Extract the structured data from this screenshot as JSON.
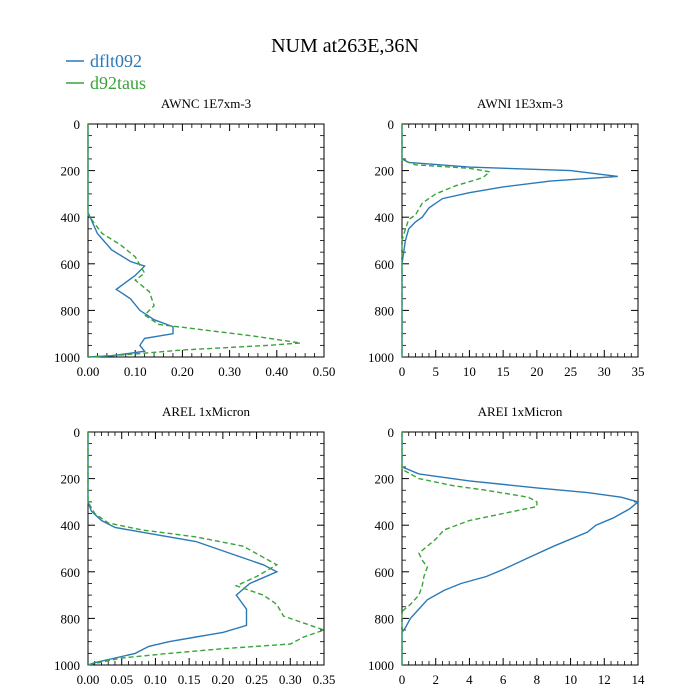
{
  "title": "NUM at263E,36N",
  "legend": [
    {
      "label": "dflt092",
      "color": "#2a7ab8",
      "dash": "solid"
    },
    {
      "label": "d92taus",
      "color": "#3aa33a",
      "dash": "dashed"
    }
  ],
  "chart_data": [
    {
      "type": "line",
      "title": "AWNC  1E7xm-3",
      "xlim": [
        0,
        0.5
      ],
      "ylim": [
        1000,
        0
      ],
      "x_ticks": [
        "0.00",
        "0.10",
        "0.20",
        "0.30",
        "0.40",
        "0.50"
      ],
      "x_tick_values": [
        0,
        0.1,
        0.2,
        0.3,
        0.4,
        0.5
      ],
      "y_ticks": [
        "0",
        "200",
        "400",
        "600",
        "800",
        "1000"
      ],
      "y_tick_values": [
        0,
        200,
        400,
        600,
        800,
        1000
      ],
      "series": [
        {
          "name": "dflt092",
          "points": [
            [
              0,
              0
            ],
            [
              0,
              380
            ],
            [
              0.02,
              470
            ],
            [
              0.05,
              540
            ],
            [
              0.09,
              590
            ],
            [
              0.12,
              610
            ],
            [
              0.1,
              650
            ],
            [
              0.06,
              710
            ],
            [
              0.09,
              750
            ],
            [
              0.11,
              800
            ],
            [
              0.14,
              840
            ],
            [
              0.18,
              870
            ],
            [
              0.18,
              900
            ],
            [
              0.12,
              920
            ],
            [
              0.11,
              950
            ],
            [
              0.12,
              975
            ],
            [
              0.05,
              995
            ],
            [
              0,
              1000
            ]
          ]
        },
        {
          "name": "d92taus",
          "points": [
            [
              0,
              0
            ],
            [
              0,
              390
            ],
            [
              0.03,
              470
            ],
            [
              0.07,
              520
            ],
            [
              0.1,
              570
            ],
            [
              0.12,
              640
            ],
            [
              0.1,
              670
            ],
            [
              0.13,
              720
            ],
            [
              0.14,
              780
            ],
            [
              0.12,
              820
            ],
            [
              0.15,
              860
            ],
            [
              0.25,
              885
            ],
            [
              0.35,
              910
            ],
            [
              0.45,
              940
            ],
            [
              0.38,
              950
            ],
            [
              0.2,
              970
            ],
            [
              0.08,
              990
            ],
            [
              0,
              1000
            ]
          ]
        }
      ]
    },
    {
      "type": "line",
      "title": "AWNI  1E3xm-3",
      "xlim": [
        0,
        35
      ],
      "ylim": [
        1000,
        0
      ],
      "x_ticks": [
        "0",
        "5",
        "10",
        "15",
        "20",
        "25",
        "30",
        "35"
      ],
      "x_tick_values": [
        0,
        5,
        10,
        15,
        20,
        25,
        30,
        35
      ],
      "y_ticks": [
        "0",
        "200",
        "400",
        "600",
        "800",
        "1000"
      ],
      "y_tick_values": [
        0,
        200,
        400,
        600,
        800,
        1000
      ],
      "series": [
        {
          "name": "dflt092",
          "points": [
            [
              0,
              0
            ],
            [
              0,
              150
            ],
            [
              1,
              165
            ],
            [
              10,
              185
            ],
            [
              25,
              200
            ],
            [
              32,
              225
            ],
            [
              22,
              245
            ],
            [
              15,
              270
            ],
            [
              10,
              295
            ],
            [
              6,
              320
            ],
            [
              4,
              360
            ],
            [
              3,
              400
            ],
            [
              2,
              420
            ],
            [
              1,
              450
            ],
            [
              0.5,
              500
            ],
            [
              0,
              600
            ],
            [
              0,
              1000
            ]
          ]
        },
        {
          "name": "d92taus",
          "points": [
            [
              0,
              0
            ],
            [
              0,
              155
            ],
            [
              2,
              175
            ],
            [
              10,
              190
            ],
            [
              13,
              205
            ],
            [
              12,
              230
            ],
            [
              8,
              265
            ],
            [
              5,
              300
            ],
            [
              3,
              340
            ],
            [
              2,
              390
            ],
            [
              1,
              410
            ],
            [
              0.5,
              450
            ],
            [
              0,
              500
            ],
            [
              0,
              1000
            ]
          ]
        }
      ]
    },
    {
      "type": "line",
      "title": "AREL  1xMicron",
      "xlim": [
        0,
        0.35
      ],
      "ylim": [
        1000,
        0
      ],
      "x_ticks": [
        "0.00",
        "0.05",
        "0.10",
        "0.15",
        "0.20",
        "0.25",
        "0.30",
        "0.35"
      ],
      "x_tick_values": [
        0,
        0.05,
        0.1,
        0.15,
        0.2,
        0.25,
        0.3,
        0.35
      ],
      "y_ticks": [
        "0",
        "200",
        "400",
        "600",
        "800",
        "1000"
      ],
      "y_tick_values": [
        0,
        200,
        400,
        600,
        800,
        1000
      ],
      "series": [
        {
          "name": "dflt092",
          "points": [
            [
              0,
              0
            ],
            [
              0,
              300
            ],
            [
              0.005,
              340
            ],
            [
              0.02,
              380
            ],
            [
              0.04,
              410
            ],
            [
              0.08,
              430
            ],
            [
              0.16,
              470
            ],
            [
              0.22,
              530
            ],
            [
              0.26,
              570
            ],
            [
              0.28,
              600
            ],
            [
              0.24,
              650
            ],
            [
              0.22,
              700
            ],
            [
              0.235,
              760
            ],
            [
              0.235,
              830
            ],
            [
              0.2,
              860
            ],
            [
              0.16,
              880
            ],
            [
              0.12,
              900
            ],
            [
              0.09,
              920
            ],
            [
              0.07,
              950
            ],
            [
              0.04,
              970
            ],
            [
              0.01,
              990
            ],
            [
              0,
              1000
            ]
          ]
        },
        {
          "name": "d92taus",
          "points": [
            [
              0,
              0
            ],
            [
              0,
              300
            ],
            [
              0.01,
              350
            ],
            [
              0.03,
              390
            ],
            [
              0.08,
              420
            ],
            [
              0.16,
              450
            ],
            [
              0.23,
              490
            ],
            [
              0.28,
              570
            ],
            [
              0.25,
              620
            ],
            [
              0.22,
              660
            ],
            [
              0.26,
              700
            ],
            [
              0.28,
              740
            ],
            [
              0.29,
              790
            ],
            [
              0.33,
              830
            ],
            [
              0.35,
              850
            ],
            [
              0.32,
              880
            ],
            [
              0.3,
              910
            ],
            [
              0.2,
              930
            ],
            [
              0.12,
              950
            ],
            [
              0.05,
              970
            ],
            [
              0,
              1000
            ]
          ]
        }
      ]
    },
    {
      "type": "line",
      "title": "AREI  1xMicron",
      "xlim": [
        0,
        14
      ],
      "ylim": [
        1000,
        0
      ],
      "x_ticks": [
        "0",
        "2",
        "4",
        "6",
        "8",
        "10",
        "12",
        "14"
      ],
      "x_tick_values": [
        0,
        2,
        4,
        6,
        8,
        10,
        12,
        14
      ],
      "y_ticks": [
        "0",
        "200",
        "400",
        "600",
        "800",
        "1000"
      ],
      "y_tick_values": [
        0,
        200,
        400,
        600,
        800,
        1000
      ],
      "series": [
        {
          "name": "dflt092",
          "points": [
            [
              0,
              0
            ],
            [
              0,
              150
            ],
            [
              1,
              180
            ],
            [
              4,
              210
            ],
            [
              8,
              240
            ],
            [
              11,
              260
            ],
            [
              13,
              280
            ],
            [
              14,
              300
            ],
            [
              13.5,
              330
            ],
            [
              12.5,
              370
            ],
            [
              11.5,
              400
            ],
            [
              11,
              430
            ],
            [
              9,
              490
            ],
            [
              7.5,
              540
            ],
            [
              6,
              590
            ],
            [
              5,
              620
            ],
            [
              3.5,
              650
            ],
            [
              2.5,
              680
            ],
            [
              1.5,
              720
            ],
            [
              1,
              760
            ],
            [
              0.5,
              800
            ],
            [
              0.2,
              840
            ],
            [
              0,
              860
            ],
            [
              0,
              1000
            ]
          ]
        },
        {
          "name": "d92taus",
          "points": [
            [
              0,
              0
            ],
            [
              0,
              160
            ],
            [
              1,
              200
            ],
            [
              3,
              230
            ],
            [
              5,
              250
            ],
            [
              7.5,
              280
            ],
            [
              8,
              300
            ],
            [
              8,
              320
            ],
            [
              6,
              350
            ],
            [
              4,
              380
            ],
            [
              2.5,
              420
            ],
            [
              2,
              460
            ],
            [
              1.5,
              490
            ],
            [
              1,
              520
            ],
            [
              1.2,
              550
            ],
            [
              1.5,
              580
            ],
            [
              1.3,
              620
            ],
            [
              1.2,
              660
            ],
            [
              1,
              700
            ],
            [
              0.5,
              740
            ],
            [
              0,
              770
            ],
            [
              0,
              1000
            ]
          ]
        }
      ]
    }
  ]
}
